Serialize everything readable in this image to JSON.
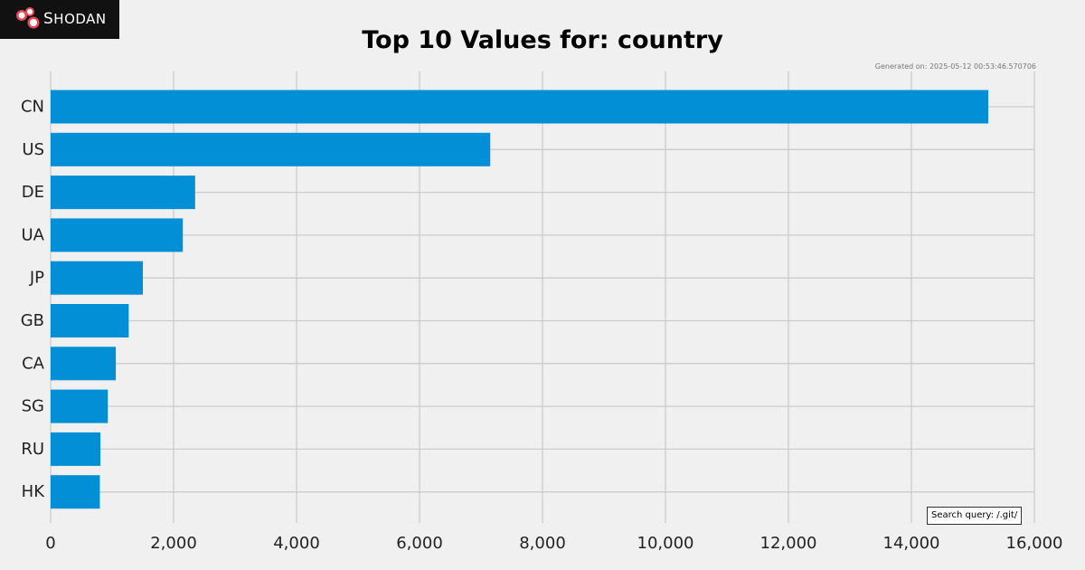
{
  "brand": {
    "name": "Shodan",
    "logo_icon": "shodan-logo-icon"
  },
  "generated_text": "Generated on: 2025-05-12 00:53:46.570706",
  "search_query_text": "Search query: /.git/",
  "chart_data": {
    "type": "bar",
    "orientation": "horizontal",
    "title": "Top 10 Values for: country",
    "xlabel": "",
    "ylabel": "",
    "categories": [
      "CN",
      "US",
      "DE",
      "UA",
      "JP",
      "GB",
      "CA",
      "SG",
      "RU",
      "HK"
    ],
    "values": [
      15250,
      7150,
      2350,
      2150,
      1500,
      1270,
      1060,
      930,
      810,
      800
    ],
    "x_ticks": [
      "0",
      "2,000",
      "4,000",
      "6,000",
      "8,000",
      "10,000",
      "12,000",
      "14,000",
      "16,000"
    ],
    "xlim": [
      0,
      16000
    ],
    "grid": true,
    "legend": "none",
    "colors": {
      "bar": "#038fd6",
      "grid": "#cbcbcb",
      "background": "#f0f0f0"
    }
  }
}
